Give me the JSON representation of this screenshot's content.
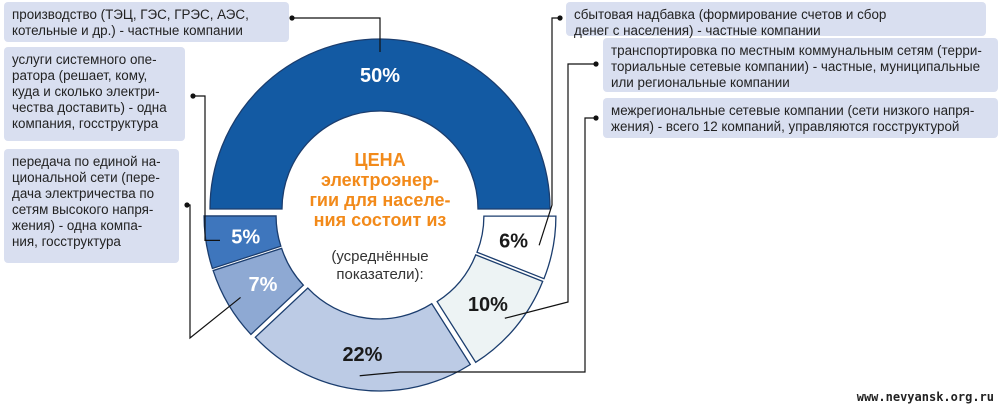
{
  "chart_data": {
    "type": "pie",
    "title": "ЦЕНА\nэлектроэнер-\nгии для населе-\nния состоит из",
    "subtitle": "(усреднённые\nпоказатели):",
    "slices": [
      {
        "label": "производство (ТЭЦ, ГЭС, ГРЭС, АЭС,\nкотельные и др.) - частные компании",
        "value": 50,
        "value_label": "50%",
        "color": "#135aa3"
      },
      {
        "label": "сбытовая надбавка (формирование счетов и сбор\nденег с населения) - частные компании",
        "value": 6,
        "value_label": "6%",
        "color": "#ffffff"
      },
      {
        "label": "транспортировка по местным коммунальным сетям (терри-\nториальные сетевые компании) - частные, муниципальные\nили региональные компании",
        "value": 10,
        "value_label": "10%",
        "color": "#edf3f4"
      },
      {
        "label": "межрегиональные сетевые компании (сети низкого напря-\nжения) - всего 12 компаний, управляются госструктурой",
        "value": 22,
        "value_label": "22%",
        "color": "#bccbe5"
      },
      {
        "label": "передача по единой на-\nциональной сети (пере-\nдача электричества по\nсетям высокого напря-\nжения) - одна компа-\nния, госструктура",
        "value": 7,
        "value_label": "7%",
        "color": "#8ea9d3"
      },
      {
        "label": "услуги системного опе-\nратора (решает, кому,\nкуда и сколько электри-\nчества доставить) - одна\nкомпания, госструктура",
        "value": 5,
        "value_label": "5%",
        "color": "#3e76bd"
      }
    ]
  },
  "watermark": "www.nevyansk.org.ru"
}
